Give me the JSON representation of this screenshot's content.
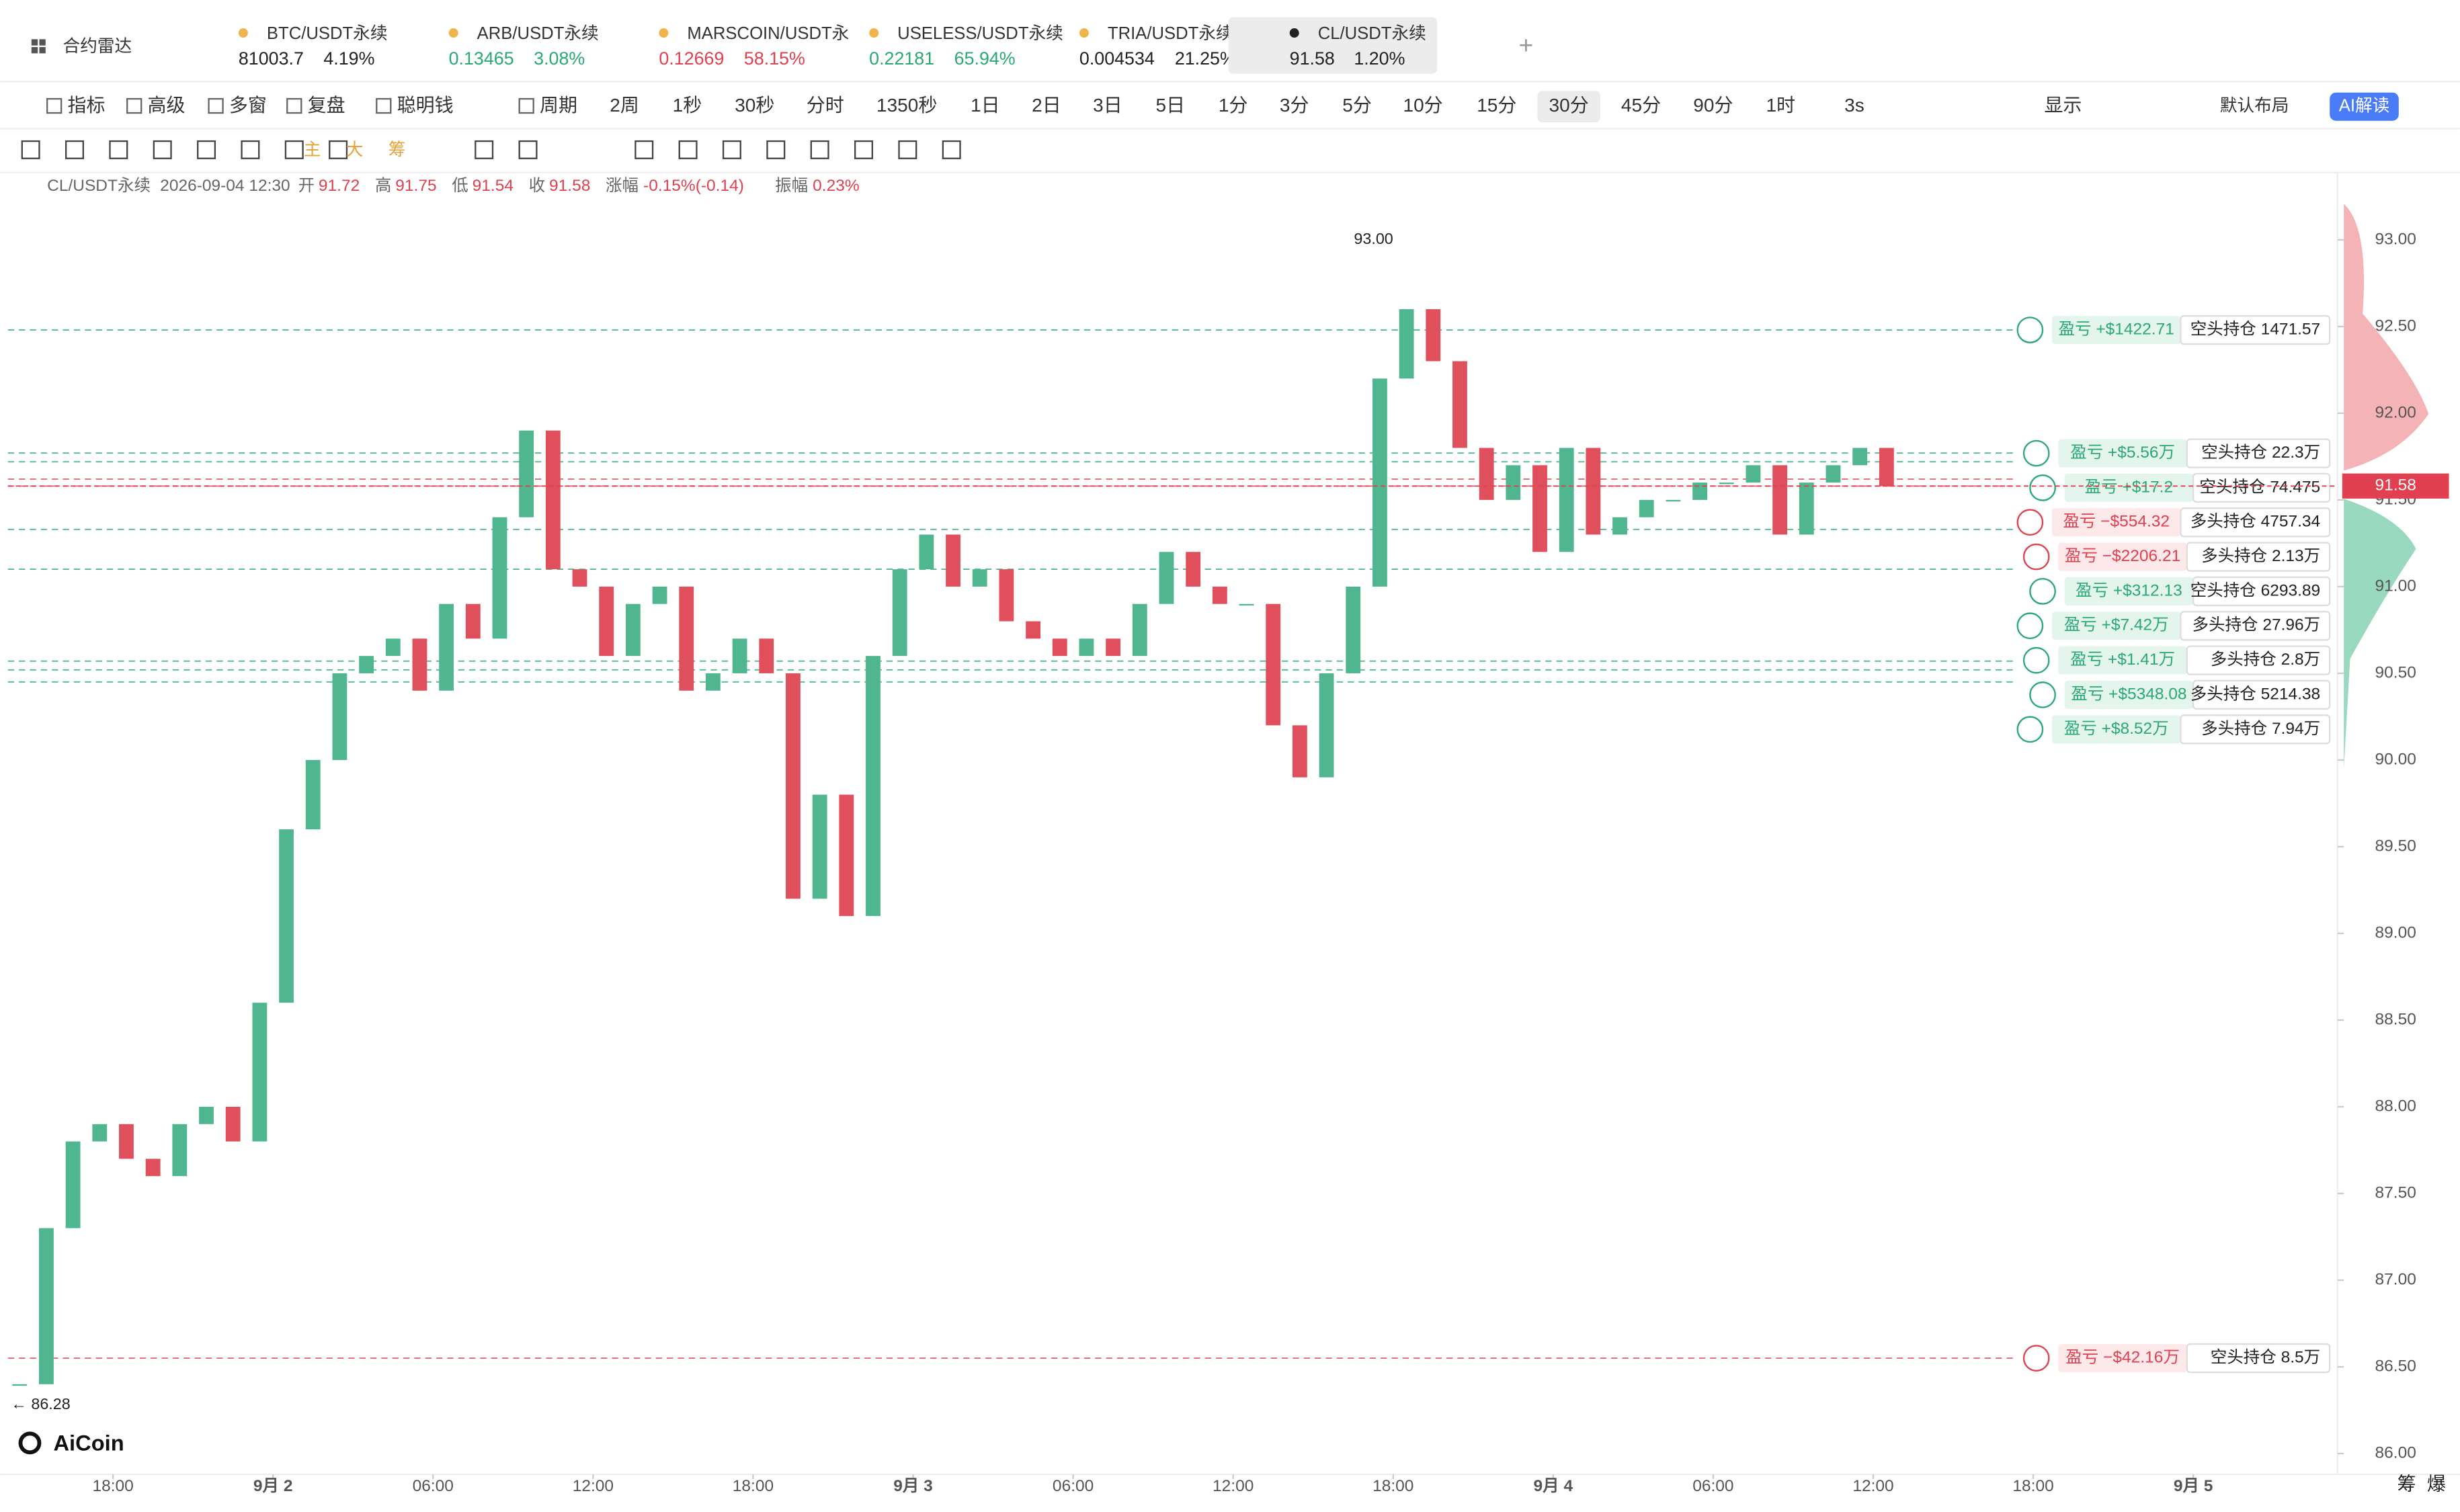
{
  "header": {
    "radar": "合约雷达",
    "tabs": [
      {
        "name": "BTC/USDT永续",
        "price": "81003.7",
        "change": "4.19%",
        "color": "#222222"
      },
      {
        "name": "ARB/USDT永续",
        "price": "0.13465",
        "change": "3.08%",
        "color": "#2aa876"
      },
      {
        "name": "MARSCOIN/USDT永",
        "price": "0.12669",
        "change": "58.15%",
        "color": "#e0404f"
      },
      {
        "name": "USELESS/USDT永续",
        "price": "0.22181",
        "change": "65.94%",
        "color": "#2aa876"
      },
      {
        "name": "TRIA/USDT永续",
        "price": "0.004534",
        "change": "21.25%",
        "color": "#222222"
      },
      {
        "name": "CL/USDT永续",
        "price": "91.58",
        "change": "1.20%",
        "color": "#222222"
      }
    ],
    "active_tab": 5
  },
  "toolbar": {
    "tools": [
      "指标",
      "高级",
      "多窗",
      "复盘",
      "聪明钱",
      "周期"
    ],
    "periods": [
      "2周",
      "1秒",
      "30秒",
      "分时",
      "1350秒",
      "1日",
      "2日",
      "3日",
      "5日",
      "1分",
      "3分",
      "5分",
      "10分",
      "15分",
      "30分",
      "45分",
      "90分",
      "1时"
    ],
    "active_period": 14,
    "refresh": "3s",
    "display": "显示",
    "layout": "默认布局",
    "ai": "AI解读"
  },
  "drawing_tools": [
    "主",
    "大",
    "筹"
  ],
  "info": {
    "symbol": "CL/USDT永续",
    "time": "2026-09-04 12:30",
    "fields": [
      {
        "label": "开",
        "value": "91.72"
      },
      {
        "label": "高",
        "value": "91.75"
      },
      {
        "label": "低",
        "value": "91.54"
      },
      {
        "label": "收",
        "value": "91.58"
      },
      {
        "label": "涨幅",
        "value": "-0.15%(-0.14)"
      },
      {
        "label": "振幅",
        "value": "0.23%"
      }
    ]
  },
  "chart_data": {
    "type": "candlestick",
    "up_color": "#4fb68f",
    "down_color": "#e0505c",
    "x": [
      -3.5,
      -2.5,
      -1.5,
      -0.5,
      0.5,
      1.5,
      2.5,
      3.5,
      4.5,
      5.5,
      6.5,
      7.5,
      8.5,
      9.5,
      10.5,
      11.5,
      12.5,
      13.5,
      14.5,
      15.5,
      16.5,
      17.5,
      18.5,
      19.5,
      20.5,
      21.5,
      22.5,
      23.5,
      24.5,
      25.5,
      26.5,
      27.5,
      28.5,
      29.5,
      30.5,
      31.5,
      32.5,
      33.5,
      34.5,
      35.5,
      36.5,
      37.5,
      38.5,
      39.5,
      40.5,
      41.5,
      42.5,
      43.5,
      44.5,
      45.5,
      46.5,
      47.5,
      48.5,
      49.5,
      50.5,
      51.5,
      52.5,
      53.5,
      54.5,
      55.5,
      56.5,
      57.5,
      58.5,
      59.5,
      60.5,
      61.5,
      62.5,
      63.5,
      64.5,
      65.5,
      66.5
    ],
    "values": [
      86.4,
      87.3,
      87.8,
      87.9,
      87.7,
      87.6,
      87.9,
      88.0,
      87.8,
      88.6,
      89.6,
      90.0,
      90.5,
      90.6,
      90.7,
      90.4,
      90.9,
      90.7,
      91.4,
      91.9,
      91.1,
      91.0,
      90.6,
      90.9,
      91.0,
      90.4,
      90.5,
      90.7,
      90.5,
      89.2,
      89.8,
      89.1,
      90.6,
      91.1,
      91.3,
      91.0,
      91.1,
      90.8,
      90.7,
      90.6,
      90.7,
      90.6,
      90.9,
      91.2,
      91.0,
      90.9,
      90.9,
      90.2,
      89.9,
      90.5,
      91.0,
      92.2,
      92.6,
      92.3,
      91.8,
      91.5,
      91.7,
      91.2,
      91.8,
      91.3,
      91.4,
      91.5,
      91.5,
      91.6,
      91.6,
      91.7,
      91.3,
      91.6,
      91.7,
      91.8,
      91.58
    ],
    "xlim": [
      -3.94,
      83.41
    ],
    "ylim": [
      85.88,
      93.37
    ],
    "xticks": [
      {
        "value": 0,
        "label": "18:00"
      },
      {
        "value": 6,
        "label": "9月 2"
      },
      {
        "value": 12,
        "label": "06:00"
      },
      {
        "value": 18,
        "label": "12:00"
      },
      {
        "value": 24,
        "label": "18:00"
      },
      {
        "value": 30,
        "label": "9月 3"
      },
      {
        "value": 36,
        "label": "06:00"
      },
      {
        "value": 42,
        "label": "12:00"
      },
      {
        "value": 48,
        "label": "18:00"
      },
      {
        "value": 54,
        "label": "9月 4"
      },
      {
        "value": 60,
        "label": "06:00"
      },
      {
        "value": 66,
        "label": "12:00"
      },
      {
        "value": 72,
        "label": "18:00"
      },
      {
        "value": 78,
        "label": "9月 5"
      }
    ],
    "yticks": [
      {
        "value": 86,
        "label": "86.00"
      },
      {
        "value": 86.5,
        "label": "86.50"
      },
      {
        "value": 87,
        "label": "87.00"
      },
      {
        "value": 87.5,
        "label": "87.50"
      },
      {
        "value": 88,
        "label": "88.00"
      },
      {
        "value": 88.5,
        "label": "88.50"
      },
      {
        "value": 89,
        "label": "89.00"
      },
      {
        "value": 89.5,
        "label": "89.50"
      },
      {
        "value": 90,
        "label": "90.00"
      },
      {
        "value": 90.5,
        "label": "90.50"
      },
      {
        "value": 91,
        "label": "91.00"
      },
      {
        "value": 91.5,
        "label": "91.50"
      },
      {
        "value": 92,
        "label": "92.00"
      },
      {
        "value": 92.5,
        "label": "92.50"
      },
      {
        "value": 93,
        "label": "93.00"
      }
    ],
    "last_price": {
      "value": 91.58,
      "label": "91.58"
    },
    "annotations": [
      {
        "x": 47,
        "value": 93,
        "label": "93.00"
      },
      {
        "x": -3.35,
        "value": 86.28,
        "label": "← 86.28"
      }
    ],
    "positions": [
      {
        "price": 92.48,
        "pnl": "盈亏 +$1422.71",
        "side": "空头持仓 1471.57",
        "color": "#2aa876"
      },
      {
        "price": 91.77,
        "pnl": "盈亏 +$5.56万",
        "side": "空头持仓 22.3万",
        "color": "#2aa876"
      },
      {
        "price": 91.72,
        "pnl": "盈亏 +$17.2",
        "side": "空头持仓 74.475",
        "color": "#2aa876"
      },
      {
        "price": 91.62,
        "pnl": "盈亏 −$554.32",
        "side": "多头持仓 4757.34",
        "color": "#e0404f"
      },
      {
        "price": 91.58,
        "pnl": "盈亏 −$2206.21",
        "side": "多头持仓 2.13万",
        "color": "#e0404f"
      },
      {
        "price": 91.33,
        "pnl": "盈亏 +$312.13",
        "side": "空头持仓 6293.89",
        "color": "#2aa876"
      },
      {
        "price": 91.1,
        "pnl": "盈亏 +$7.42万",
        "side": "多头持仓 27.96万",
        "color": "#2aa876"
      },
      {
        "price": 90.57,
        "pnl": "盈亏 +$1.41万",
        "side": "多头持仓 2.8万",
        "color": "#2aa876"
      },
      {
        "price": 90.52,
        "pnl": "盈亏 +$5348.08",
        "side": "多头持仓 5214.38",
        "color": "#2aa876"
      },
      {
        "price": 90.45,
        "pnl": "盈亏 +$8.52万",
        "side": "多头持仓 7.94万",
        "color": "#2aa876"
      },
      {
        "price": 86.55,
        "pnl": "盈亏 −$42.16万",
        "side": "空头持仓 8.5万",
        "color": "#e0404f"
      }
    ]
  },
  "footer": {
    "logo": "AiCoin",
    "right": [
      "筹",
      "爆"
    ]
  }
}
